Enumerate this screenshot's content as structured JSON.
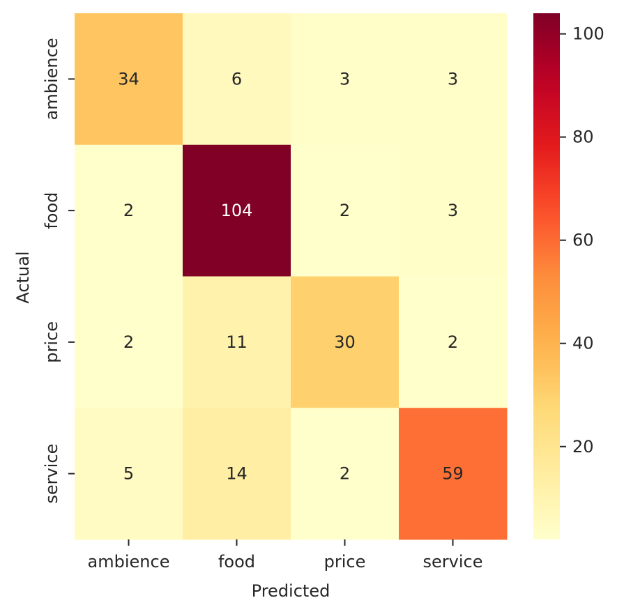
{
  "chart_data": {
    "type": "heatmap",
    "x_categories": [
      "ambience",
      "food",
      "price",
      "service"
    ],
    "y_categories": [
      "ambience",
      "food",
      "price",
      "service"
    ],
    "xlabel": "Predicted",
    "ylabel": "Actual",
    "values": [
      [
        34,
        6,
        3,
        3
      ],
      [
        2,
        104,
        2,
        3
      ],
      [
        2,
        11,
        30,
        2
      ],
      [
        5,
        14,
        2,
        59
      ]
    ],
    "colormap": "YlOrRd",
    "colorbar": {
      "min": 2,
      "max": 104,
      "ticks": [
        20,
        40,
        60,
        80,
        100
      ]
    },
    "annotations": true
  }
}
